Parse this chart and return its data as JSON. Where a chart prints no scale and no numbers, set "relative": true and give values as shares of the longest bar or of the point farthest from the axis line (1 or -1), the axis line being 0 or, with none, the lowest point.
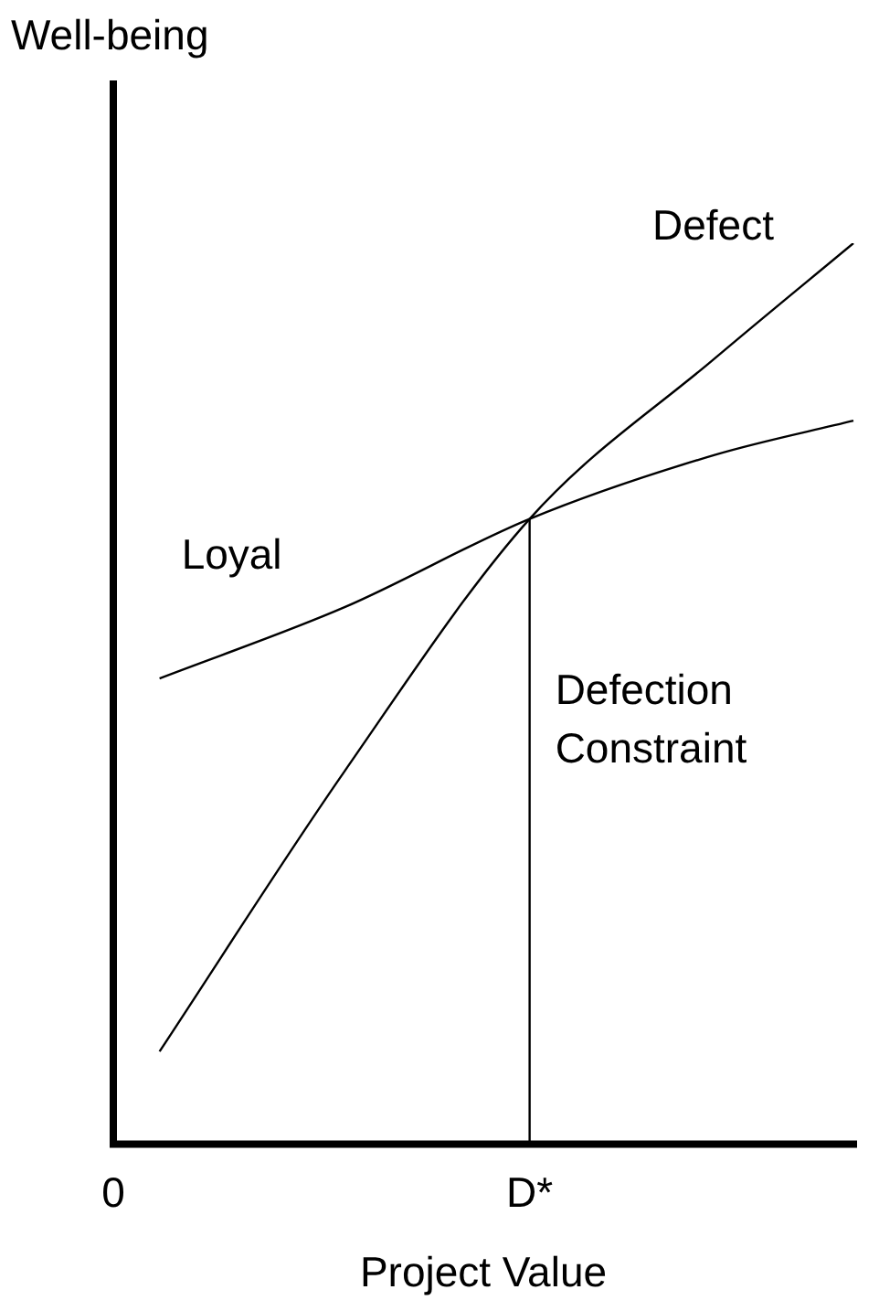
{
  "chart_data": {
    "type": "line",
    "relative": true,
    "xlabel": "Project Value",
    "ylabel": "Well-being",
    "categories": [
      "0",
      null,
      null,
      null,
      null,
      null,
      null,
      null,
      null,
      "D*",
      null,
      null,
      null,
      null,
      null,
      null,
      null
    ],
    "tick_labels": "x",
    "grid": false,
    "legend": false,
    "marker": "none",
    "line_style": "solid",
    "series": [
      {
        "name": "Loyal",
        "color": "#000000",
        "values": [
          null,
          0.517,
          null,
          null,
          null,
          0.596,
          null,
          null,
          null,
          0.694,
          null,
          null,
          null,
          0.765,
          null,
          null,
          0.803
        ]
      },
      {
        "name": "Defect",
        "color": "#000000",
        "values": [
          null,
          0.103,
          null,
          null,
          null,
          0.414,
          null,
          null,
          null,
          0.694,
          null,
          null,
          null,
          0.872,
          null,
          null,
          1
        ]
      }
    ],
    "ref_lines": [
      {
        "axis": "x",
        "value": "D*",
        "label": "Defection Constraint",
        "color": "#000000"
      }
    ]
  }
}
